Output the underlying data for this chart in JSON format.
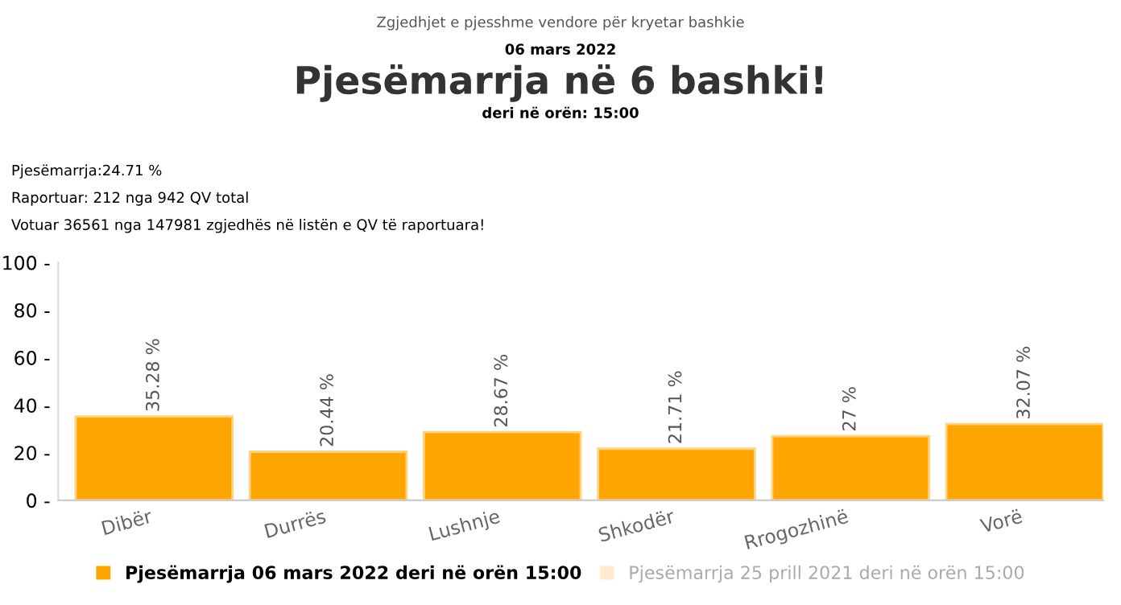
{
  "chart_data": {
    "type": "bar",
    "title": "Pjesëmarrja në 6 bashki!",
    "subtitle": "deri në orën: 15:00",
    "annotations": [
      "Zgjedhjet e pjesshme vendore për kryetar bashkie",
      "06 mars 2022",
      "Pjesëmarrja:24.71 %",
      "Raportuar: 212 nga 942 QV total",
      "Votuar 36561 nga 147981 zgjedhës në listën e QV të raportuara!"
    ],
    "categories": [
      "Dibër",
      "Durrës",
      "Lushnje",
      "Shkodër",
      "Rrogozhinë",
      "Vorë"
    ],
    "series": [
      {
        "name": "Pjesëmarrja 06 mars 2022 deri në orën 15:00",
        "color": "#ffa500",
        "values": [
          35.28,
          20.44,
          28.67,
          21.71,
          27,
          32.07
        ],
        "value_labels": [
          "35.28 %",
          "20.44 %",
          "28.67 %",
          "21.71 %",
          "27 %",
          "32.07 %"
        ]
      },
      {
        "name": "Pjesëmarrja 25 prill 2021 deri në orën 15:00",
        "color": "#fdebd0",
        "values": [
          null,
          null,
          null,
          null,
          null,
          null
        ]
      }
    ],
    "ylim": [
      0,
      100
    ],
    "yticks": [
      {
        "value": 0,
        "label": "0 -"
      },
      {
        "value": 20,
        "label": "20 -"
      },
      {
        "value": 40,
        "label": "40 -"
      },
      {
        "value": 60,
        "label": "60 -"
      },
      {
        "value": 80,
        "label": "80 -"
      },
      {
        "value": 100,
        "label": "100 -"
      }
    ],
    "grid": false,
    "legend": "bottom"
  }
}
